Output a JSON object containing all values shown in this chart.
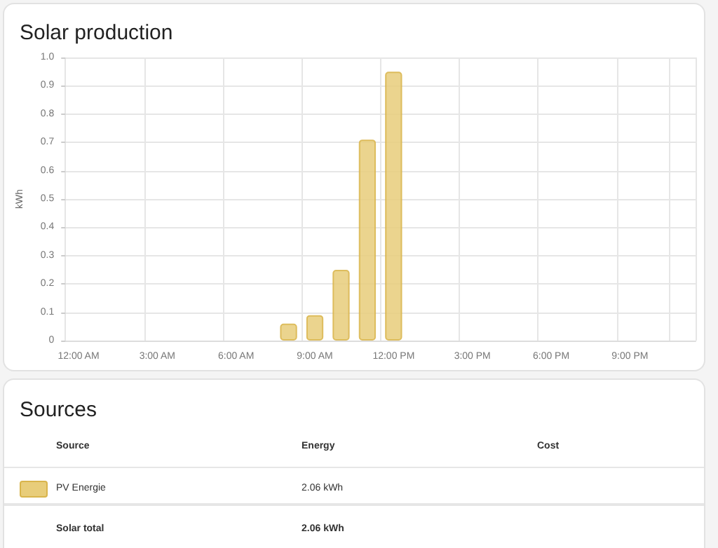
{
  "chart_data": [
    {
      "type": "bar",
      "title": "Solar production",
      "ylabel": "kWh",
      "categories": [
        "12:00 AM",
        null,
        null,
        "3:00 AM",
        null,
        null,
        "6:00 AM",
        null,
        null,
        "9:00 AM",
        null,
        null,
        "12:00 PM",
        null,
        null,
        "3:00 PM",
        null,
        null,
        "6:00 PM",
        null,
        null,
        "9:00 PM",
        null,
        null
      ],
      "series": [
        {
          "color": "#e8cd7a",
          "values": [
            null,
            null,
            null,
            null,
            null,
            null,
            null,
            null,
            0.06,
            0.09,
            0.25,
            0.71,
            0.95,
            null,
            null,
            null,
            null,
            null,
            null,
            null,
            null,
            null,
            null,
            null
          ]
        }
      ],
      "ylim": [
        0,
        1
      ],
      "yticks": [
        0,
        0.1,
        0.2,
        0.3,
        0.4,
        0.5,
        0.6,
        0.7,
        0.8,
        0.9,
        {
          "value": 1,
          "label": "1.0"
        }
      ],
      "grid": true
    },
    {
      "type": "other",
      "title": "Sources",
      "annotations": [
        "Source",
        "Energy",
        "Cost",
        "PV Energie",
        "2.06 kWh",
        "Solar total",
        "2.06 kWh"
      ]
    }
  ]
}
